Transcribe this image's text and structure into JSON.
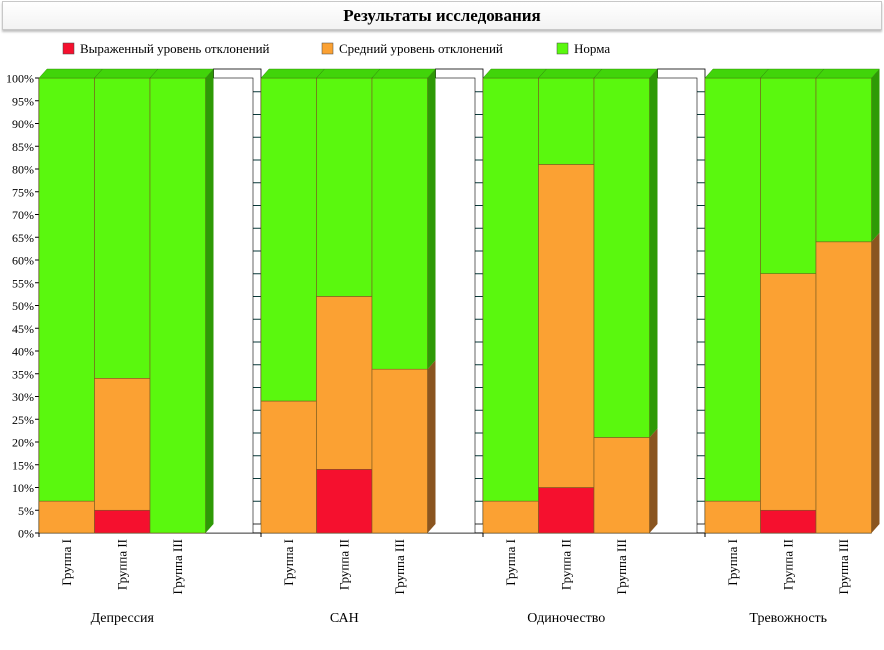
{
  "chart_data": {
    "type": "bar",
    "stacked": "percent",
    "title": "Результаты исследования",
    "legend": {
      "position": "top",
      "entries": [
        {
          "label": "Выраженный уровень отклонений",
          "color": "#f5102e"
        },
        {
          "label": "Средний уровень отклонений",
          "color": "#fba133"
        },
        {
          "label": "Норма",
          "color": "#5af80e"
        }
      ]
    },
    "y_ticks": [
      "0%",
      "5%",
      "10%",
      "15%",
      "20%",
      "25%",
      "30%",
      "35%",
      "40%",
      "45%",
      "50%",
      "55%",
      "60%",
      "65%",
      "70%",
      "75%",
      "80%",
      "85%",
      "90%",
      "95%",
      "100%"
    ],
    "ylim": [
      0,
      100
    ],
    "groups": [
      {
        "name": "Депрессия",
        "bars": [
          {
            "label": "Группа I",
            "values": [
              0,
              7,
              93
            ]
          },
          {
            "label": "Группа II",
            "values": [
              5,
              29,
              66
            ]
          },
          {
            "label": "Группа III",
            "values": [
              0,
              0,
              100
            ]
          }
        ]
      },
      {
        "name": "САН",
        "bars": [
          {
            "label": "Группа I",
            "values": [
              0,
              29,
              71
            ]
          },
          {
            "label": "Группа II",
            "values": [
              14,
              38,
              48
            ]
          },
          {
            "label": "Группа III",
            "values": [
              0,
              36,
              64
            ]
          }
        ]
      },
      {
        "name": "Одиночество",
        "bars": [
          {
            "label": "Группа I",
            "values": [
              0,
              7,
              93
            ]
          },
          {
            "label": "Группа II",
            "values": [
              10,
              71,
              19
            ]
          },
          {
            "label": "Группа III",
            "values": [
              0,
              21,
              79
            ]
          }
        ]
      },
      {
        "name": "Тревожность",
        "bars": [
          {
            "label": "Группа I",
            "values": [
              0,
              7,
              93
            ]
          },
          {
            "label": "Группа II",
            "values": [
              5,
              52,
              43
            ]
          },
          {
            "label": "Группа III",
            "values": [
              0,
              64,
              36
            ]
          }
        ]
      }
    ],
    "grid": true
  }
}
